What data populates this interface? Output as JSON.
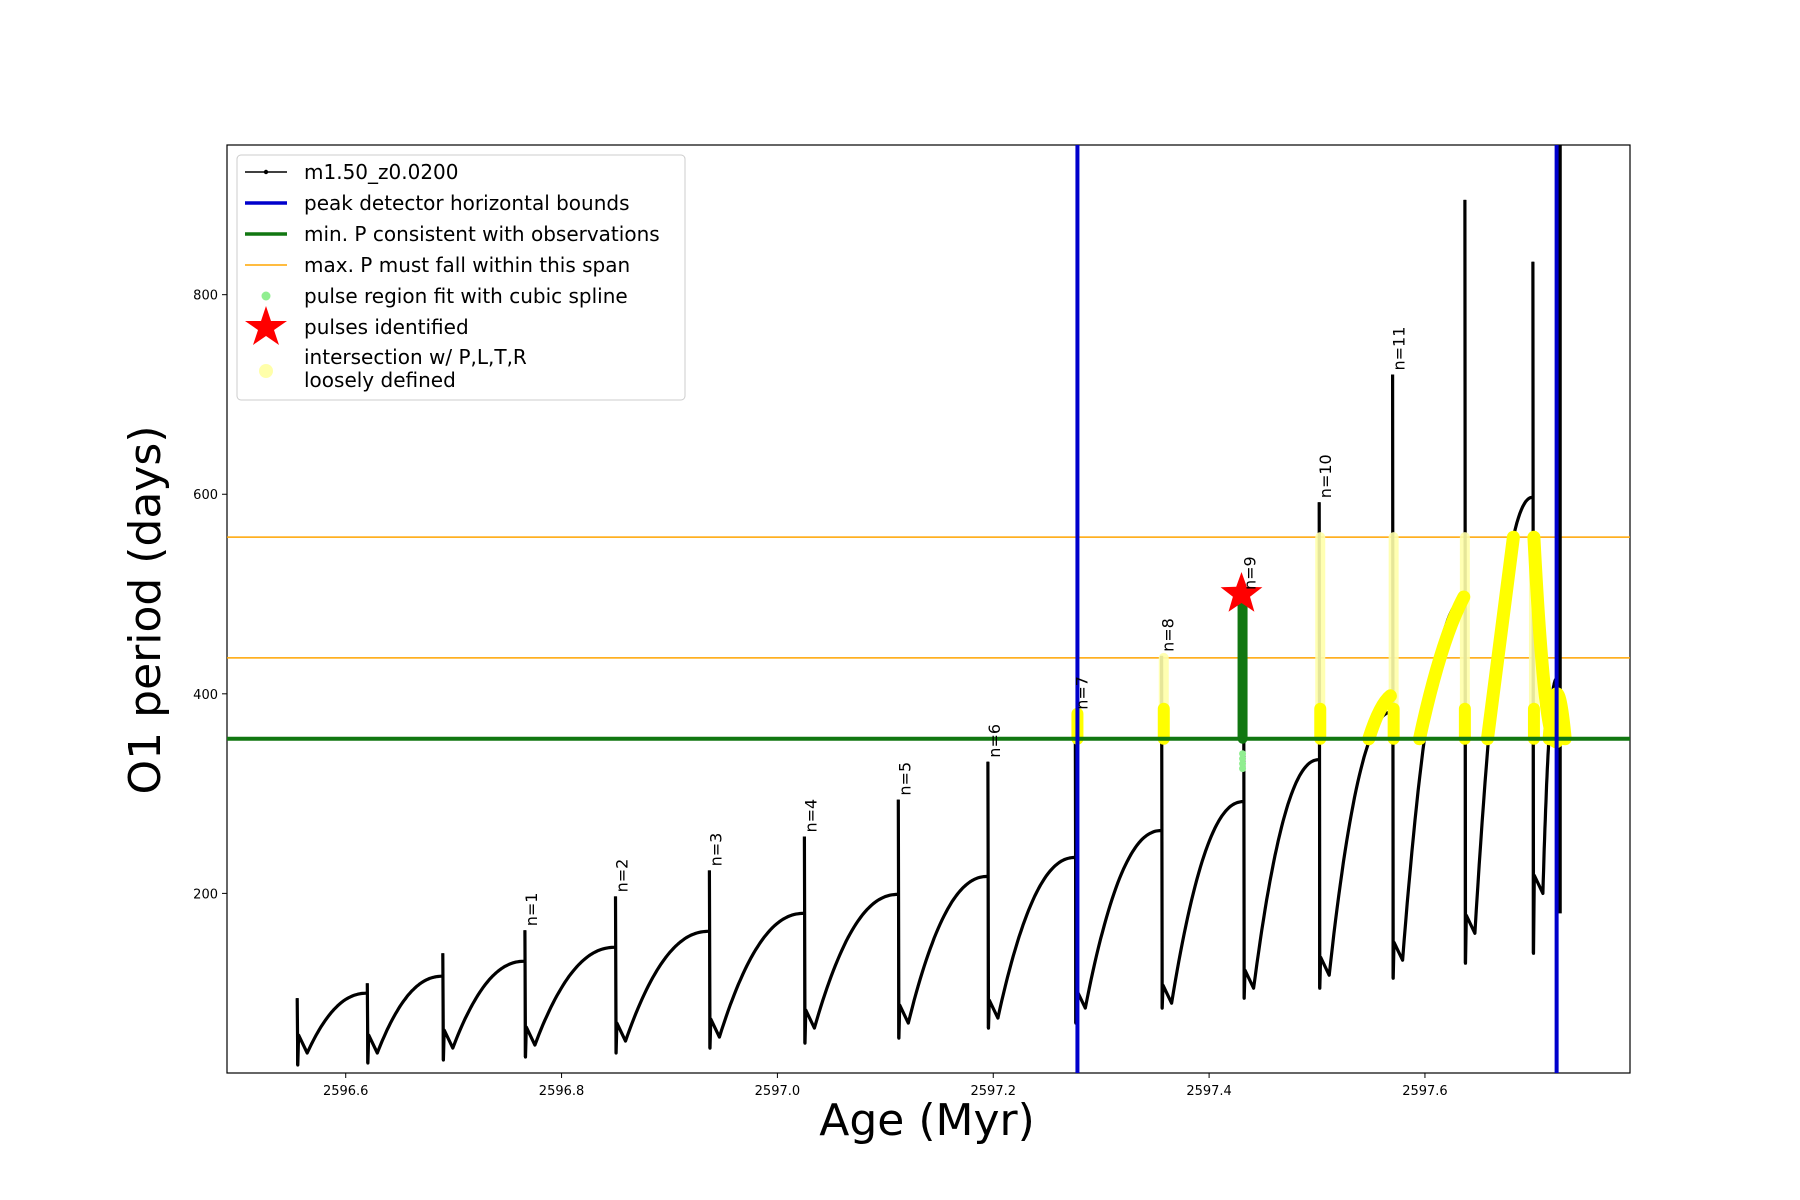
{
  "chart_data": {
    "type": "line",
    "xlabel": "Age (Myr)",
    "ylabel": "O1 period (days)",
    "xlim": [
      2596.49,
      2597.79
    ],
    "ylim": [
      20,
      950
    ],
    "x_ticks": [
      "2596.6",
      "2596.8",
      "2597.0",
      "2597.2",
      "2597.4",
      "2597.6"
    ],
    "x_tick_values": [
      2596.6,
      2596.8,
      2597.0,
      2597.2,
      2597.4,
      2597.6
    ],
    "y_ticks": [
      "200",
      "400",
      "600",
      "800"
    ],
    "y_tick_values": [
      200,
      400,
      600,
      800
    ],
    "grid": false,
    "legend_position": "top-left",
    "colors": {
      "model": "#000000",
      "peak_bounds": "#0000cc",
      "min_period": "#117711",
      "max_period": "#ffa500",
      "spline": "#90ee90",
      "pulses": "#ff0000",
      "intersection": "#ffff00",
      "intersection_loose": "#ffffaa"
    },
    "legend": [
      "m1.50_z0.0200",
      "peak detector horizontal bounds",
      "min. P consistent with observations",
      "max. P must fall within this span",
      "pulse region fit with cubic spline",
      "pulses identified",
      "intersection w/ P,L,T,R",
      "loosely defined"
    ],
    "peak_detector_bounds_x": [
      2597.278,
      2597.722
    ],
    "min_period_y": 355,
    "max_period_span_y": [
      436,
      557
    ],
    "pulse_identified": {
      "x": 2597.43,
      "y": 500
    },
    "model_cycles": [
      {
        "start": 2596.555,
        "min": 40,
        "peak_age": 2596.62,
        "peak": 100,
        "spike": 95
      },
      {
        "start": 2596.62,
        "min": 40,
        "peak_age": 2596.69,
        "peak": 117,
        "spike": 110
      },
      {
        "start": 2596.69,
        "min": 45,
        "peak_age": 2596.766,
        "peak": 132,
        "spike": 140
      },
      {
        "start": 2596.766,
        "min": 48,
        "peak_age": 2596.85,
        "peak": 146,
        "spike": 163
      },
      {
        "start": 2596.85,
        "min": 52,
        "peak_age": 2596.937,
        "peak": 162,
        "spike": 197
      },
      {
        "start": 2596.937,
        "min": 56,
        "peak_age": 2597.025,
        "peak": 180,
        "spike": 223
      },
      {
        "start": 2597.025,
        "min": 65,
        "peak_age": 2597.112,
        "peak": 199,
        "spike": 257
      },
      {
        "start": 2597.112,
        "min": 70,
        "peak_age": 2597.195,
        "peak": 217,
        "spike": 294
      },
      {
        "start": 2597.195,
        "min": 75,
        "peak_age": 2597.276,
        "peak": 236,
        "spike": 332
      },
      {
        "start": 2597.276,
        "min": 85,
        "peak_age": 2597.356,
        "peak": 263,
        "spike": 380
      },
      {
        "start": 2597.356,
        "min": 90,
        "peak_age": 2597.432,
        "peak": 292,
        "spike": 438
      },
      {
        "start": 2597.432,
        "min": 105,
        "peak_age": 2597.502,
        "peak": 334,
        "spike": 500
      },
      {
        "start": 2597.502,
        "min": 118,
        "peak_age": 2597.57,
        "peak": 382,
        "spike": 592
      },
      {
        "start": 2597.57,
        "min": 133,
        "peak_age": 2597.637,
        "peak": 495,
        "spike": 720
      },
      {
        "start": 2597.637,
        "min": 160,
        "peak_age": 2597.7,
        "peak": 597,
        "spike": 895
      },
      {
        "start": 2597.7,
        "min": 200,
        "peak_age": 2597.722,
        "peak": 415,
        "spike": 833
      }
    ],
    "spike_dips": [
      28,
      30,
      33,
      36,
      40,
      45,
      50,
      55,
      65,
      70,
      85,
      95,
      105,
      115,
      130,
      140
    ],
    "pulse_labels": [
      {
        "label": "n=1",
        "x": 2596.766,
        "y": 163
      },
      {
        "label": "n=2",
        "x": 2596.85,
        "y": 197
      },
      {
        "label": "n=3",
        "x": 2596.937,
        "y": 223
      },
      {
        "label": "n=4",
        "x": 2597.025,
        "y": 257
      },
      {
        "label": "n=5",
        "x": 2597.112,
        "y": 294
      },
      {
        "label": "n=6",
        "x": 2597.195,
        "y": 332
      },
      {
        "label": "n=7",
        "x": 2597.276,
        "y": 380
      },
      {
        "label": "n=8",
        "x": 2597.356,
        "y": 438
      },
      {
        "label": "n=9",
        "x": 2597.432,
        "y": 500
      },
      {
        "label": "n=10",
        "x": 2597.502,
        "y": 592
      },
      {
        "label": "n=11",
        "x": 2597.57,
        "y": 720
      }
    ],
    "intersection_vertical_segments": [
      {
        "x": 2597.278,
        "y": [
          355,
          380
        ]
      },
      {
        "x": 2597.358,
        "y": [
          355,
          436
        ]
      },
      {
        "x": 2597.503,
        "y": [
          355,
          557
        ]
      },
      {
        "x": 2597.571,
        "y": [
          355,
          557
        ]
      },
      {
        "x": 2597.637,
        "y": [
          355,
          557
        ]
      },
      {
        "x": 2597.701,
        "y": [
          355,
          557
        ]
      }
    ],
    "intersection_curves": [
      {
        "x": [
          2597.548,
          2597.558,
          2597.568
        ],
        "y": [
          355,
          385,
          398
        ]
      },
      {
        "x": [
          2597.595,
          2597.615,
          2597.636
        ],
        "y": [
          355,
          445,
          497
        ]
      },
      {
        "x": [
          2597.658,
          2597.67,
          2597.682
        ],
        "y": [
          355,
          455,
          557
        ]
      },
      {
        "x": [
          2597.701,
          2597.712,
          2597.724
        ],
        "y": [
          557,
          370,
          355
        ]
      },
      {
        "x": [
          2597.715,
          2597.722,
          2597.73
        ],
        "y": [
          355,
          415,
          355
        ]
      }
    ],
    "green_fit_region": {
      "x": 2597.431,
      "y": [
        355,
        500
      ]
    },
    "spline_points_below": {
      "x": 2597.431,
      "y": [
        325,
        340
      ]
    }
  }
}
